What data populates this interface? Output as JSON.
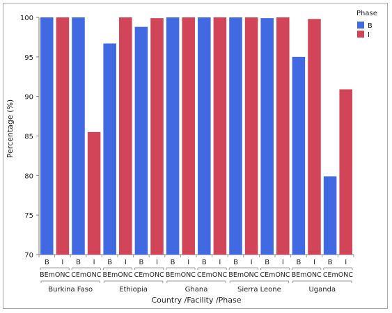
{
  "chart_data": {
    "type": "bar",
    "ylabel": "Percentage (%)",
    "xlabel": "Country /Facility /Phase",
    "ylim": [
      70,
      100
    ],
    "yticks": [
      70,
      75,
      80,
      85,
      90,
      95,
      100
    ],
    "legend": {
      "title": "Phase",
      "placement": "top-right"
    },
    "series": [
      {
        "name": "B",
        "color": "#4169e1"
      },
      {
        "name": "I",
        "color": "#d24457"
      }
    ],
    "groups": [
      {
        "country": "Burkina Faso",
        "facility": "BEmONC",
        "values": {
          "B": 100,
          "I": 100
        }
      },
      {
        "country": "Burkina Faso",
        "facility": "CEmONC",
        "values": {
          "B": 100,
          "I": 85.5
        }
      },
      {
        "country": "Ethiopia",
        "facility": "BEmONC",
        "values": {
          "B": 96.7,
          "I": 100
        }
      },
      {
        "country": "Ethiopia",
        "facility": "CEmONC",
        "values": {
          "B": 98.8,
          "I": 99.9
        }
      },
      {
        "country": "Ghana",
        "facility": "BEmONC",
        "values": {
          "B": 100,
          "I": 100
        }
      },
      {
        "country": "Ghana",
        "facility": "CEmONC",
        "values": {
          "B": 100,
          "I": 100
        }
      },
      {
        "country": "Sierra Leone",
        "facility": "BEmONC",
        "values": {
          "B": 100,
          "I": 100
        }
      },
      {
        "country": "Sierra Leone",
        "facility": "CEmONC",
        "values": {
          "B": 99.9,
          "I": 100
        }
      },
      {
        "country": "Uganda",
        "facility": "BEmONC",
        "values": {
          "B": 95,
          "I": 99.8
        }
      },
      {
        "country": "Uganda",
        "facility": "CEmONC",
        "values": {
          "B": 79.9,
          "I": 90.9
        }
      }
    ],
    "countries": [
      "Burkina Faso",
      "Ethiopia",
      "Ghana",
      "Sierra Leone",
      "Uganda"
    ],
    "grid": false
  }
}
